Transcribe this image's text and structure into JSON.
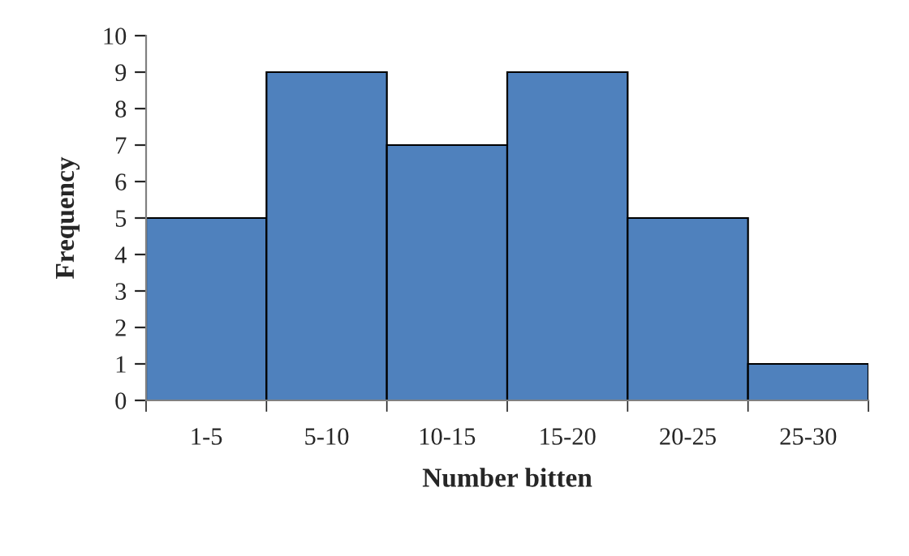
{
  "chart_data": {
    "type": "bar",
    "xlabel": "Number bitten",
    "ylabel": "Frequency",
    "categories": [
      "1-5",
      "5-10",
      "10-15",
      "15-20",
      "20-25",
      "25-30"
    ],
    "values": [
      5,
      9,
      7,
      9,
      5,
      1
    ],
    "color": "#4f81bd",
    "ylim": [
      0,
      10
    ],
    "yticks": [
      0,
      1,
      2,
      3,
      4,
      5,
      6,
      7,
      8,
      9,
      10
    ],
    "grid": false,
    "legend": false
  }
}
